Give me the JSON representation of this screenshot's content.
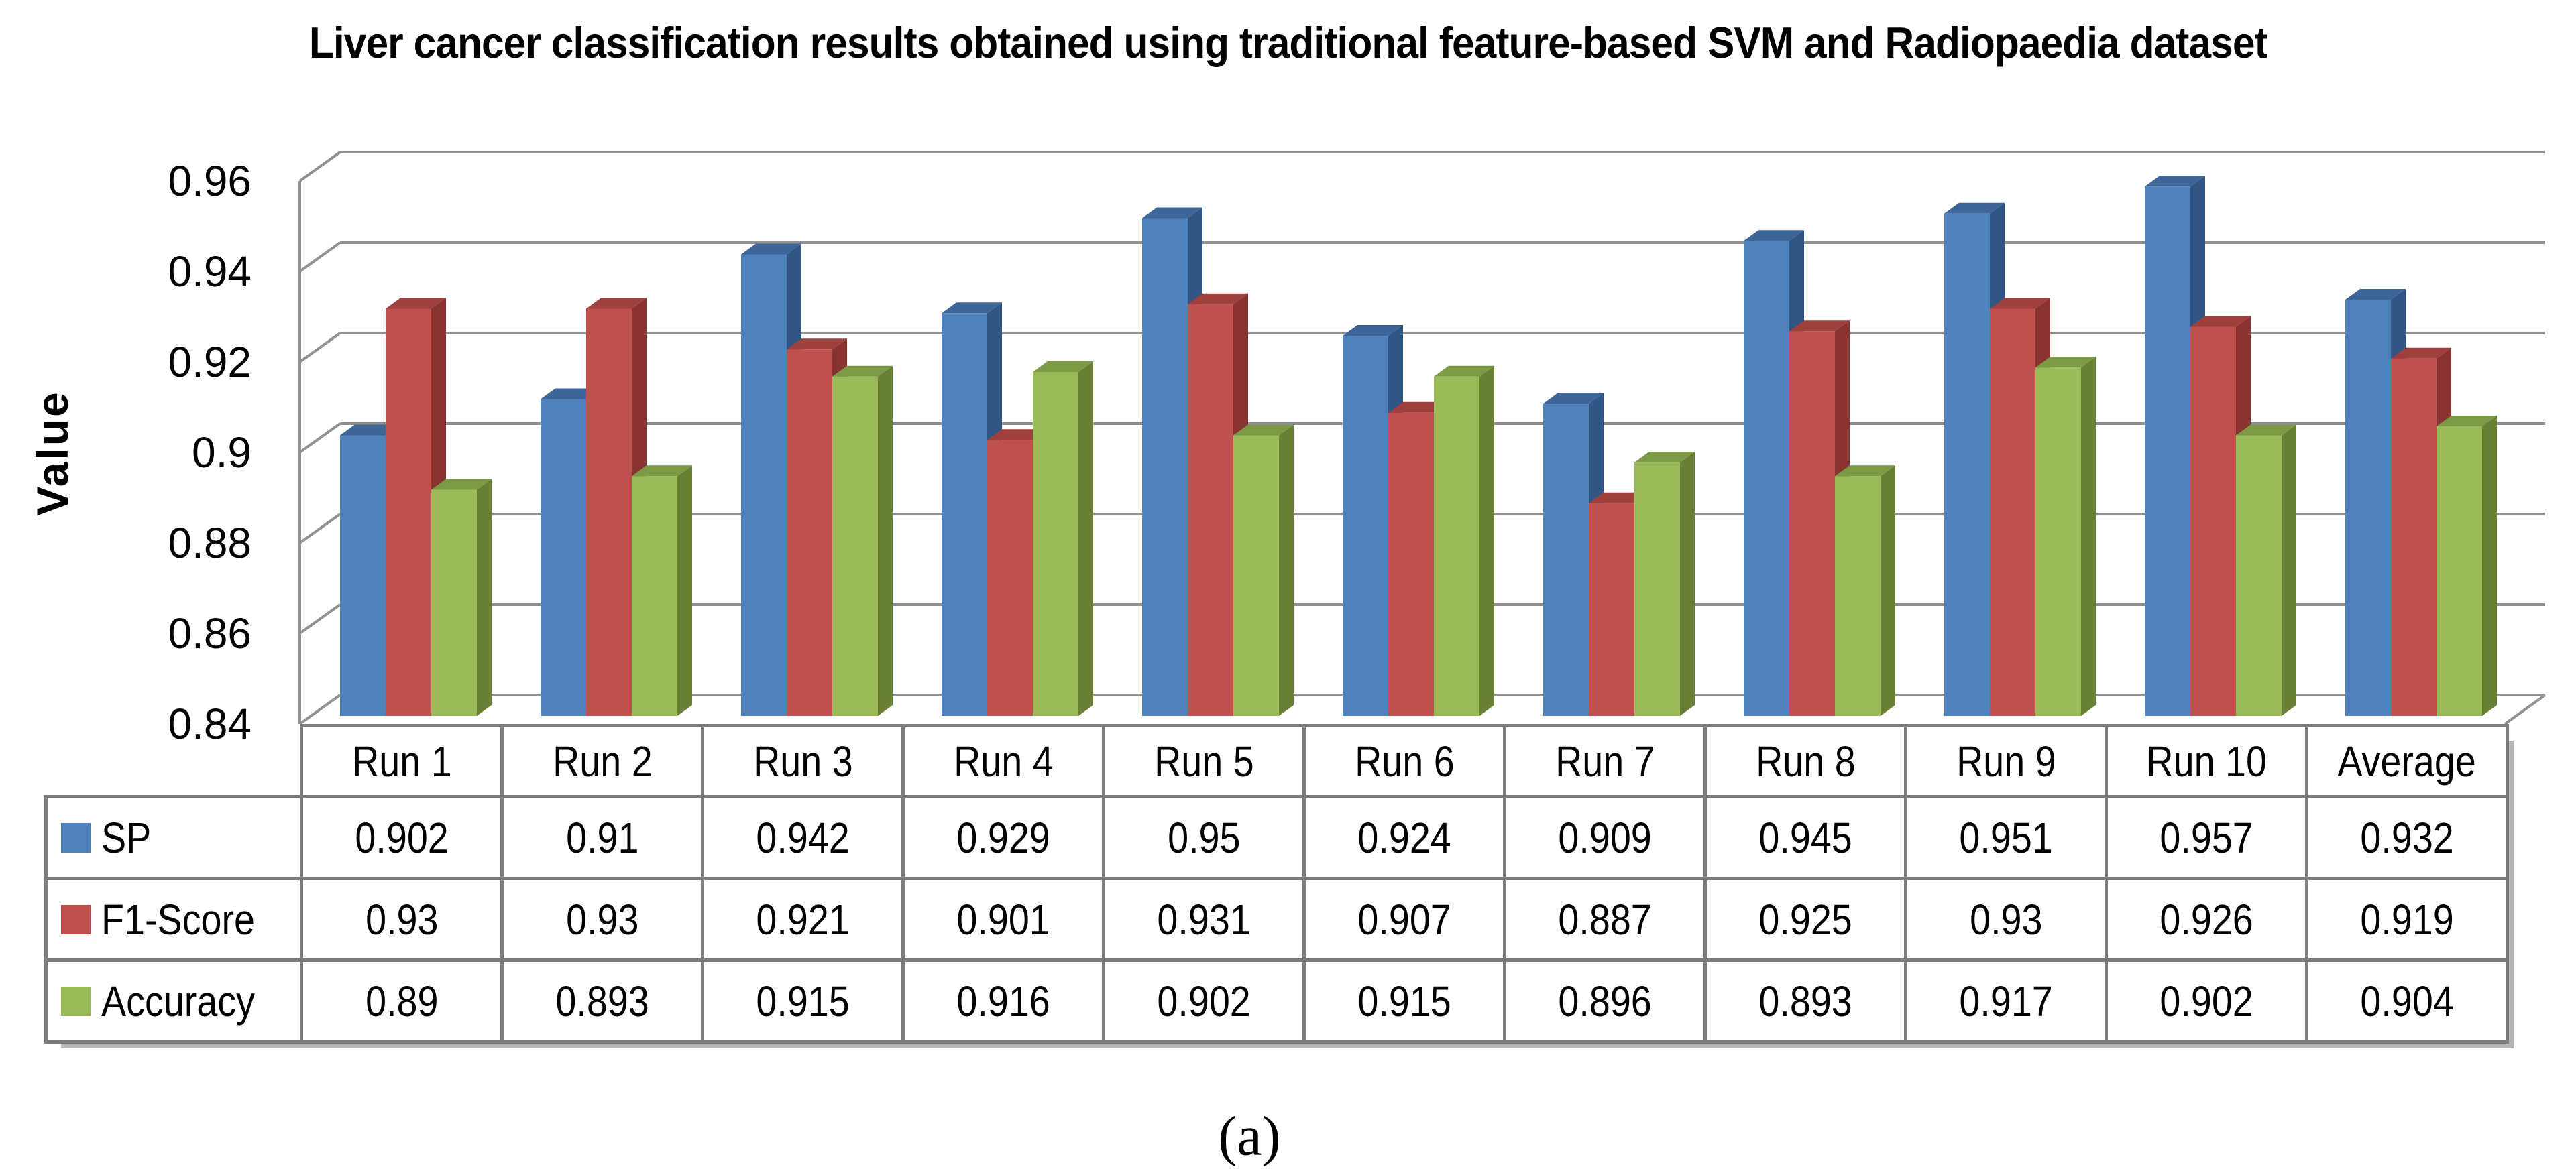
{
  "title": "Liver cancer classification results obtained using traditional feature-based SVM and Radiopaedia dataset",
  "caption": "(a)",
  "colors": {
    "gridline": "#919191",
    "table_border": "#7b7b7b",
    "text": "#000000"
  },
  "chart_data": {
    "type": "bar",
    "style": "3d",
    "title": "Liver cancer classification results obtained using traditional feature-based SVM and Radiopaedia dataset",
    "xlabel": "",
    "ylabel": "Value",
    "ylim": [
      0.84,
      0.96
    ],
    "grid": true,
    "legend_position": "table-left",
    "y_ticks": [
      {
        "label": "0.96",
        "value": 0.96
      },
      {
        "label": "0.94",
        "value": 0.94
      },
      {
        "label": "0.92",
        "value": 0.92
      },
      {
        "label": "0.9",
        "value": 0.9
      },
      {
        "label": "0.88",
        "value": 0.88
      },
      {
        "label": "0.86",
        "value": 0.86
      },
      {
        "label": "0.84",
        "value": 0.84
      }
    ],
    "categories": [
      "Run 1",
      "Run 2",
      "Run 3",
      "Run 4",
      "Run 5",
      "Run 6",
      "Run 7",
      "Run 8",
      "Run 9",
      "Run 10",
      "Average"
    ],
    "series": [
      {
        "name": "SP",
        "colors": {
          "front": "#4F81BD",
          "top": "#3D6598",
          "side": "#315684"
        },
        "values": [
          0.902,
          0.91,
          0.942,
          0.929,
          0.95,
          0.924,
          0.909,
          0.945,
          0.951,
          0.957,
          0.932
        ]
      },
      {
        "name": "F1-Score",
        "colors": {
          "front": "#C0504D",
          "top": "#9E403D",
          "side": "#8A3432"
        },
        "values": [
          0.93,
          0.93,
          0.921,
          0.901,
          0.931,
          0.907,
          0.887,
          0.925,
          0.93,
          0.926,
          0.919
        ]
      },
      {
        "name": "Accuracy",
        "colors": {
          "front": "#9BBB59",
          "top": "#7C9A46",
          "side": "#697F35"
        },
        "values": [
          0.89,
          0.893,
          0.915,
          0.916,
          0.902,
          0.915,
          0.896,
          0.893,
          0.917,
          0.902,
          0.904
        ]
      }
    ]
  }
}
